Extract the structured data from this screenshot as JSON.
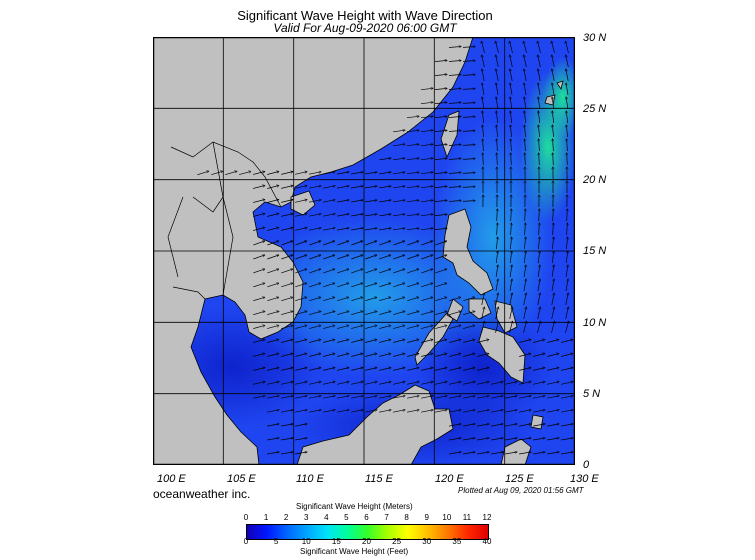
{
  "title": "Significant Wave Height with Wave Direction",
  "subtitle": "Valid For Aug-09-2020 06:00 GMT",
  "lon_labels": [
    "100 E",
    "105 E",
    "110 E",
    "115 E",
    "120 E",
    "125 E",
    "130 E"
  ],
  "lat_labels": [
    "30 N",
    "25 N",
    "20 N",
    "15 N",
    "10 N",
    "5 N",
    "0"
  ],
  "credit": "oceanweather inc.",
  "plotted": "Plotted at Aug 09, 2020 01:56 GMT",
  "colorbar": {
    "meters_title": "Significant Wave Height (Meters)",
    "meters_ticks": [
      "0",
      "1",
      "2",
      "3",
      "4",
      "5",
      "6",
      "7",
      "8",
      "9",
      "10",
      "11",
      "12"
    ],
    "feet_title": "Significant Wave Height (Feet)",
    "feet_ticks": [
      "0",
      "5",
      "10",
      "15",
      "20",
      "25",
      "30",
      "35",
      "40"
    ],
    "colors": [
      "#1500b8",
      "#0018ff",
      "#0066ff",
      "#00a6ff",
      "#00e4f8",
      "#00ff9a",
      "#36ff2a",
      "#a8ff00",
      "#ffff00",
      "#ffbf00",
      "#ff7800",
      "#ff2800",
      "#e00000"
    ]
  },
  "colors": {
    "sea": "#1f45f0",
    "land": "#c0c0c0",
    "grid": "#000000"
  }
}
